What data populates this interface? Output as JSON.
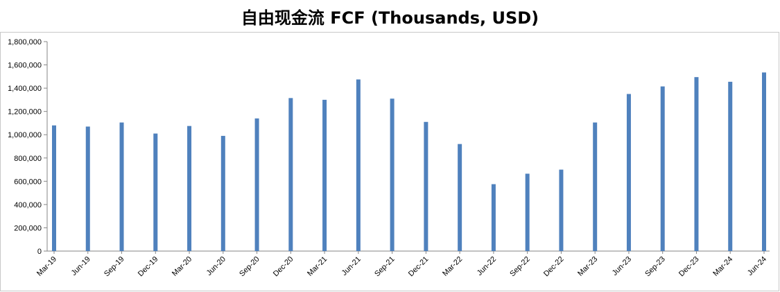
{
  "chart_data": {
    "type": "bar",
    "title": "自由现金流 FCF (Thousands, USD)",
    "xlabel": "",
    "ylabel": "",
    "ylim": [
      0,
      1800000
    ],
    "yticks": [
      0,
      200000,
      400000,
      600000,
      800000,
      1000000,
      1200000,
      1400000,
      1600000,
      1800000
    ],
    "ytick_labels": [
      "0",
      "200,000",
      "400,000",
      "600,000",
      "800,000",
      "1,000,000",
      "1,200,000",
      "1,400,000",
      "1,600,000",
      "1,800,000"
    ],
    "grid": false,
    "legend": "none",
    "bar_color": "#4f81bd",
    "categories": [
      "Mar-19",
      "Jun-19",
      "Sep-19",
      "Dec-19",
      "Mar-20",
      "Jun-20",
      "Sep-20",
      "Dec-20",
      "Mar-21",
      "Jun-21",
      "Sep-21",
      "Dec-21",
      "Mar-22",
      "Jun-22",
      "Sep-22",
      "Dec-22",
      "Mar-23",
      "Jun-23",
      "Sep-23",
      "Dec-23",
      "Mar-24",
      "Jun-24"
    ],
    "values": [
      1080000,
      1070000,
      1105000,
      1010000,
      1075000,
      990000,
      1140000,
      1315000,
      1300000,
      1475000,
      1310000,
      1110000,
      920000,
      575000,
      665000,
      700000,
      1105000,
      1350000,
      1415000,
      1495000,
      1455000,
      1535000
    ]
  }
}
